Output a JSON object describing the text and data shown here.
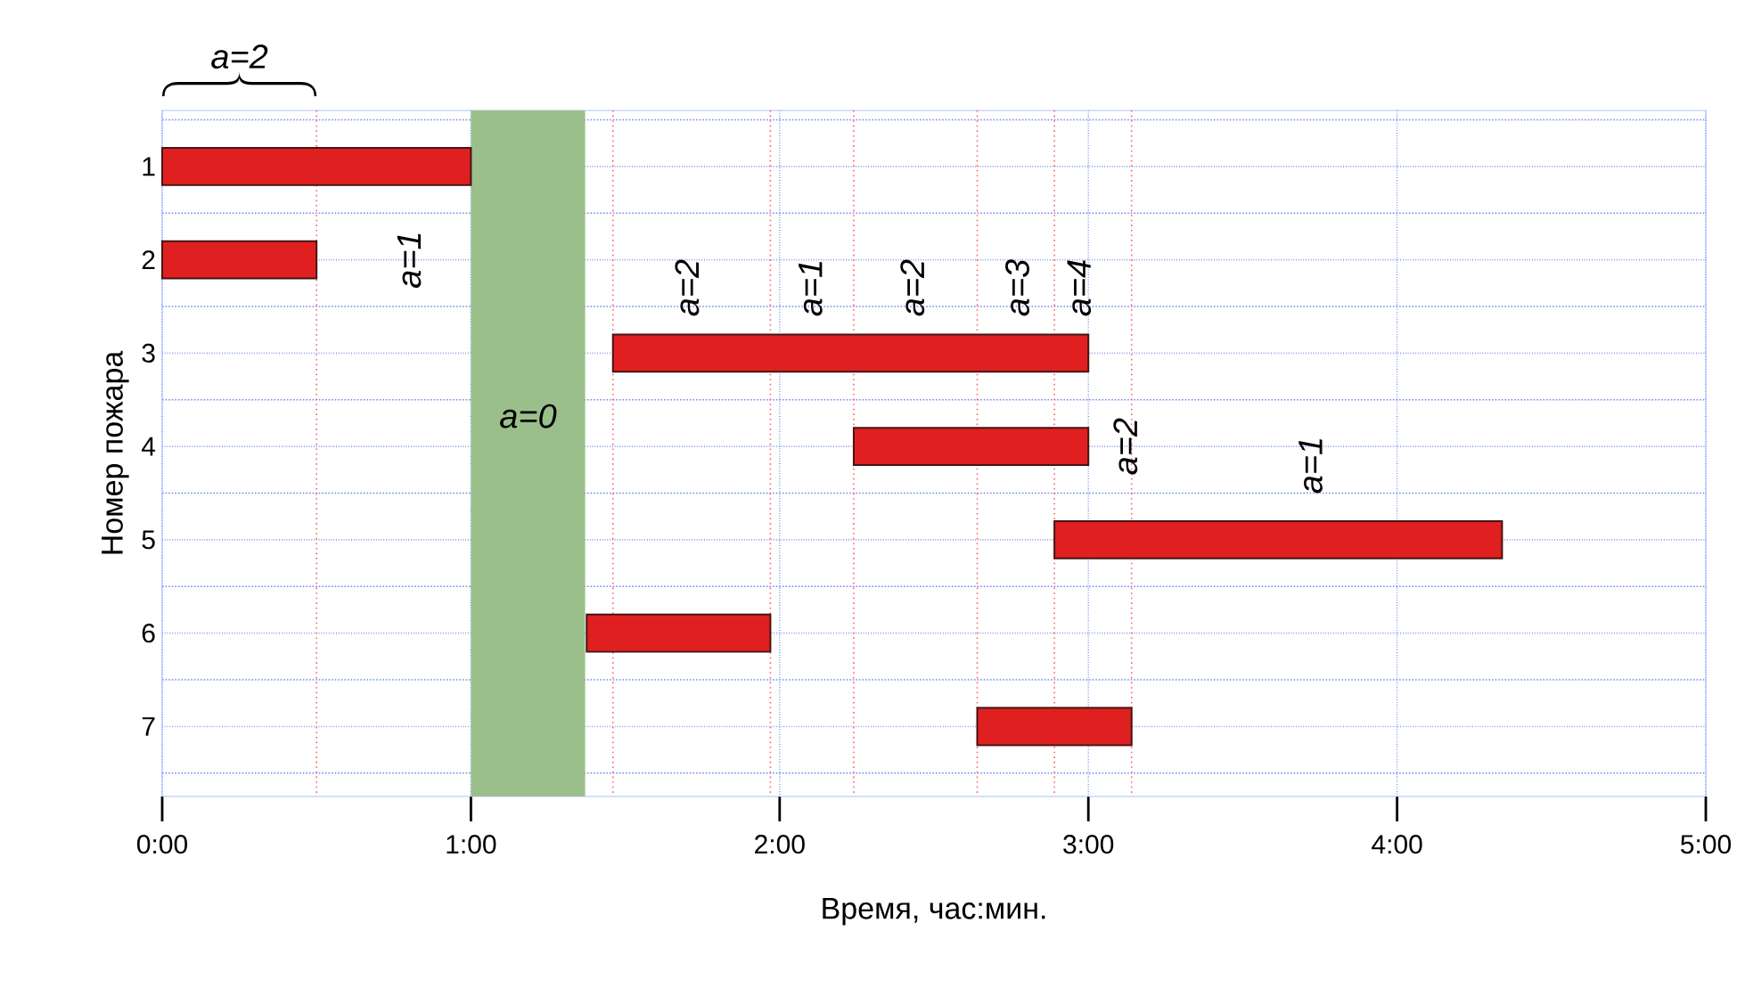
{
  "chart_data": {
    "type": "bar",
    "orientation": "horizontal",
    "categories": [
      "1",
      "2",
      "3",
      "4",
      "5",
      "6",
      "7"
    ],
    "base": [
      0,
      0,
      1.46,
      2.24,
      2.89,
      1.375,
      2.64
    ],
    "values": [
      1.0,
      0.5,
      1.54,
      0.76,
      1.45,
      0.595,
      0.5
    ],
    "color": "#e02020",
    "xlabel": "Время, час:мин.",
    "ylabel": "Номер пожара",
    "xlim": [
      0,
      5
    ],
    "xticks": [
      {
        "value": 0,
        "label": "0:00"
      },
      {
        "value": 1,
        "label": "1:00"
      },
      {
        "value": 2,
        "label": "2:00"
      },
      {
        "value": 3,
        "label": "3:00"
      },
      {
        "value": 4,
        "label": "4:00"
      },
      {
        "value": 5,
        "label": "5:00"
      }
    ],
    "grid": true,
    "bands": [
      {
        "axis": "x",
        "from": 1.0,
        "to": 1.37,
        "label": "a=0",
        "color": "#9bbf8b"
      }
    ],
    "ref_lines": [
      {
        "axis": "x",
        "value": 0.5,
        "color": "#ff6060",
        "line_style": "dotted"
      },
      {
        "axis": "x",
        "value": 1.46,
        "color": "#ff6060",
        "line_style": "dotted"
      },
      {
        "axis": "x",
        "value": 1.97,
        "color": "#ff6060",
        "line_style": "dotted"
      },
      {
        "axis": "x",
        "value": 2.24,
        "color": "#ff6060",
        "line_style": "dotted"
      },
      {
        "axis": "x",
        "value": 2.64,
        "color": "#ff6060",
        "line_style": "dotted"
      },
      {
        "axis": "x",
        "value": 2.89,
        "color": "#ff6060",
        "line_style": "dotted"
      },
      {
        "axis": "x",
        "value": 3.14,
        "color": "#ff6060",
        "line_style": "dotted"
      }
    ],
    "annotations": [
      "a=2",
      "a=1",
      "a=2",
      "a=1",
      "a=2",
      "a=3",
      "a=4",
      "a=2",
      "a=1"
    ]
  }
}
